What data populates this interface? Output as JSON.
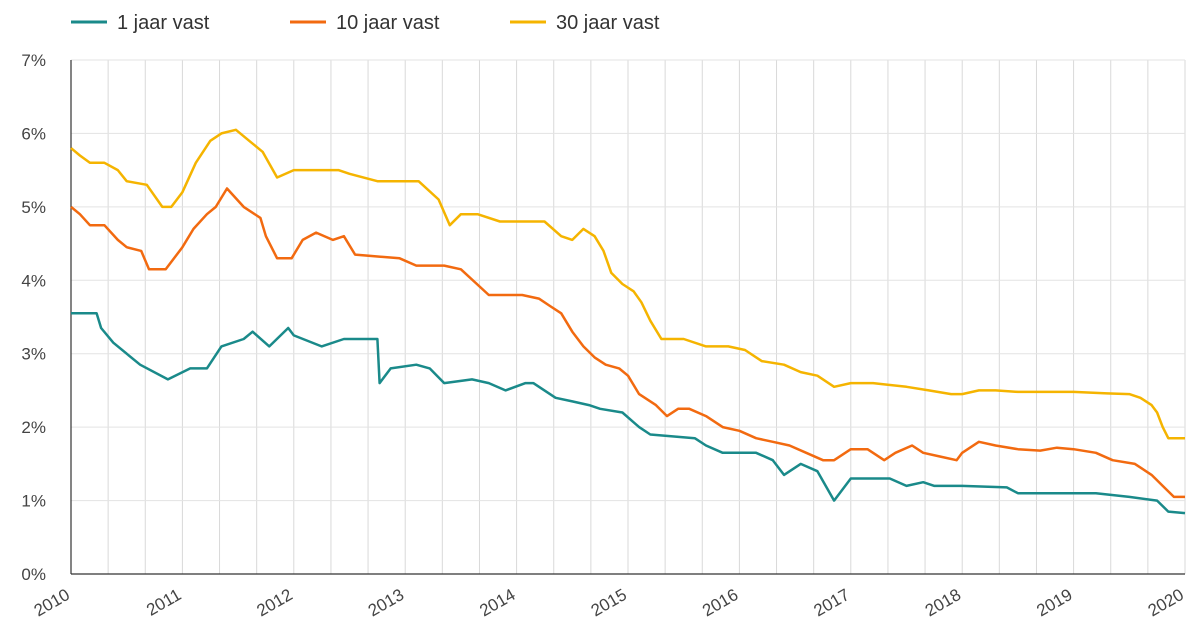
{
  "chart_data": {
    "type": "line",
    "title": "",
    "xlabel": "",
    "ylabel": "",
    "xlim": [
      2010,
      2020
    ],
    "ylim": [
      0,
      7
    ],
    "grid": true,
    "legend_position": "top-left",
    "y_ticks": [
      "0%",
      "1%",
      "2%",
      "3%",
      "4%",
      "5%",
      "6%",
      "7%"
    ],
    "x_ticks": [
      "2010",
      "2011",
      "2012",
      "2013",
      "2014",
      "2015",
      "2016",
      "2017",
      "2018",
      "2019",
      "2020"
    ],
    "colors": {
      "1 jaar vast": "#1a8a8a",
      "10 jaar vast": "#f26a10",
      "30 jaar vast": "#f5b400"
    },
    "series": [
      {
        "name": "1 jaar vast",
        "x": [
          2010.0,
          2010.23,
          2010.27,
          2010.38,
          2010.62,
          2010.87,
          2011.07,
          2011.13,
          2011.22,
          2011.35,
          2011.55,
          2011.63,
          2011.78,
          2011.95,
          2012.0,
          2012.25,
          2012.45,
          2012.75,
          2012.77,
          2012.87,
          2013.1,
          2013.22,
          2013.35,
          2013.6,
          2013.75,
          2013.9,
          2014.08,
          2014.15,
          2014.35,
          2014.5,
          2014.65,
          2014.75,
          2014.95,
          2015.1,
          2015.2,
          2015.6,
          2015.7,
          2015.85,
          2016.15,
          2016.3,
          2016.4,
          2016.55,
          2016.7,
          2016.85,
          2017.0,
          2017.35,
          2017.5,
          2017.65,
          2017.75,
          2018.0,
          2018.4,
          2018.5,
          2018.7,
          2019.2,
          2019.5,
          2019.75,
          2019.85,
          2020.0
        ],
        "y": [
          3.55,
          3.55,
          3.35,
          3.15,
          2.85,
          2.65,
          2.8,
          2.8,
          2.8,
          3.1,
          3.2,
          3.3,
          3.1,
          3.35,
          3.25,
          3.1,
          3.2,
          3.2,
          2.6,
          2.8,
          2.85,
          2.8,
          2.6,
          2.65,
          2.6,
          2.5,
          2.6,
          2.6,
          2.4,
          2.35,
          2.3,
          2.25,
          2.2,
          2.0,
          1.9,
          1.85,
          1.75,
          1.65,
          1.65,
          1.55,
          1.35,
          1.5,
          1.4,
          1.0,
          1.3,
          1.3,
          1.2,
          1.25,
          1.2,
          1.2,
          1.18,
          1.1,
          1.1,
          1.1,
          1.05,
          1.0,
          0.85,
          0.83
        ]
      },
      {
        "name": "10 jaar vast",
        "x": [
          2010.0,
          2010.08,
          2010.17,
          2010.3,
          2010.42,
          2010.5,
          2010.63,
          2010.7,
          2010.85,
          2011.0,
          2011.1,
          2011.22,
          2011.3,
          2011.4,
          2011.55,
          2011.7,
          2011.75,
          2011.85,
          2011.98,
          2012.08,
          2012.2,
          2012.35,
          2012.45,
          2012.55,
          2012.95,
          2013.1,
          2013.3,
          2013.35,
          2013.5,
          2013.75,
          2013.95,
          2014.05,
          2014.2,
          2014.3,
          2014.4,
          2014.5,
          2014.6,
          2014.7,
          2014.8,
          2014.92,
          2015.0,
          2015.1,
          2015.25,
          2015.35,
          2015.45,
          2015.55,
          2015.7,
          2015.85,
          2016.0,
          2016.15,
          2016.3,
          2016.45,
          2016.6,
          2016.75,
          2016.85,
          2017.0,
          2017.15,
          2017.3,
          2017.4,
          2017.55,
          2017.65,
          2017.8,
          2017.95,
          2018.0,
          2018.15,
          2018.3,
          2018.5,
          2018.7,
          2018.85,
          2019.0,
          2019.2,
          2019.35,
          2019.55,
          2019.7,
          2019.8,
          2019.9,
          2020.0
        ],
        "y": [
          5.0,
          4.9,
          4.75,
          4.75,
          4.55,
          4.45,
          4.4,
          4.15,
          4.15,
          4.45,
          4.7,
          4.9,
          5.0,
          5.25,
          5.0,
          4.85,
          4.6,
          4.3,
          4.3,
          4.55,
          4.65,
          4.55,
          4.6,
          4.35,
          4.3,
          4.2,
          4.2,
          4.2,
          4.15,
          3.8,
          3.8,
          3.8,
          3.75,
          3.65,
          3.55,
          3.3,
          3.1,
          2.95,
          2.85,
          2.8,
          2.7,
          2.45,
          2.3,
          2.15,
          2.25,
          2.25,
          2.15,
          2.0,
          1.95,
          1.85,
          1.8,
          1.75,
          1.65,
          1.55,
          1.55,
          1.7,
          1.7,
          1.55,
          1.65,
          1.75,
          1.65,
          1.6,
          1.55,
          1.65,
          1.8,
          1.75,
          1.7,
          1.68,
          1.72,
          1.7,
          1.65,
          1.55,
          1.5,
          1.35,
          1.2,
          1.05,
          1.05
        ]
      },
      {
        "name": "30 jaar vast",
        "x": [
          2010.0,
          2010.08,
          2010.17,
          2010.3,
          2010.42,
          2010.5,
          2010.68,
          2010.82,
          2010.9,
          2011.0,
          2011.12,
          2011.25,
          2011.35,
          2011.48,
          2011.6,
          2011.72,
          2011.85,
          2012.0,
          2012.2,
          2012.4,
          2012.5,
          2012.75,
          2013.0,
          2013.12,
          2013.3,
          2013.4,
          2013.5,
          2013.65,
          2013.85,
          2014.0,
          2014.25,
          2014.4,
          2014.5,
          2014.6,
          2014.7,
          2014.78,
          2014.85,
          2014.95,
          2015.05,
          2015.12,
          2015.2,
          2015.3,
          2015.5,
          2015.7,
          2015.9,
          2016.05,
          2016.2,
          2016.4,
          2016.55,
          2016.7,
          2016.85,
          2017.0,
          2017.2,
          2017.5,
          2017.7,
          2017.9,
          2018.0,
          2018.15,
          2018.3,
          2018.5,
          2018.7,
          2019.0,
          2019.3,
          2019.5,
          2019.6,
          2019.7,
          2019.75,
          2019.8,
          2019.85,
          2019.9,
          2020.0
        ],
        "y": [
          5.8,
          5.7,
          5.6,
          5.6,
          5.5,
          5.35,
          5.3,
          5.0,
          5.0,
          5.2,
          5.6,
          5.9,
          6.0,
          6.05,
          5.9,
          5.75,
          5.4,
          5.5,
          5.5,
          5.5,
          5.45,
          5.35,
          5.35,
          5.35,
          5.1,
          4.75,
          4.9,
          4.9,
          4.8,
          4.8,
          4.8,
          4.6,
          4.55,
          4.7,
          4.6,
          4.4,
          4.1,
          3.95,
          3.85,
          3.7,
          3.45,
          3.2,
          3.2,
          3.1,
          3.1,
          3.05,
          2.9,
          2.85,
          2.75,
          2.7,
          2.55,
          2.6,
          2.6,
          2.55,
          2.5,
          2.45,
          2.45,
          2.5,
          2.5,
          2.48,
          2.48,
          2.48,
          2.46,
          2.45,
          2.4,
          2.3,
          2.2,
          2.0,
          1.85,
          1.85,
          1.85
        ]
      }
    ]
  }
}
